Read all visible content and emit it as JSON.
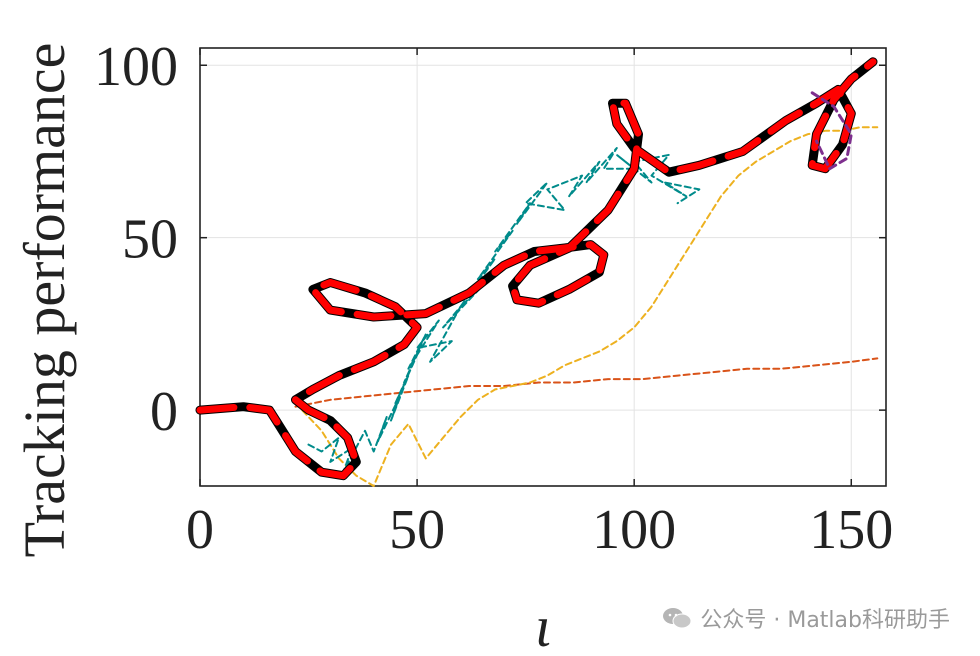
{
  "chart_data": {
    "type": "line",
    "title": "",
    "xlabel": "ι",
    "ylabel": "Tracking performance",
    "xlim": [
      0,
      158
    ],
    "ylim": [
      -22,
      105
    ],
    "xticks": [
      0,
      50,
      100,
      150
    ],
    "yticks": [
      0,
      50,
      100
    ],
    "grid": true,
    "legend": "none",
    "series": [
      {
        "color": "#000000",
        "style": "solid",
        "x": [
          0,
          10,
          16,
          18,
          22,
          28,
          33,
          36,
          34,
          30,
          25,
          22,
          26,
          32,
          40,
          47,
          50,
          45,
          38,
          30,
          26,
          30,
          40,
          52,
          62,
          70,
          77,
          84,
          90,
          93,
          92,
          85,
          78,
          73,
          72,
          76,
          85,
          94,
          100,
          101,
          98,
          95,
          96,
          100,
          108,
          115,
          125,
          135,
          142,
          147,
          150,
          148,
          144,
          141,
          142,
          146,
          150,
          155
        ],
        "y": [
          0,
          1,
          0,
          -4,
          -12,
          -18,
          -19,
          -15,
          -8,
          -3,
          0,
          3,
          6,
          10,
          14,
          19,
          24,
          30,
          34,
          37,
          35,
          29,
          27,
          28,
          34,
          42,
          46,
          47,
          48,
          45,
          40,
          35,
          31,
          32,
          36,
          42,
          47,
          58,
          70,
          80,
          89,
          89,
          83,
          76,
          69,
          71,
          75,
          84,
          89,
          93,
          86,
          77,
          70,
          71,
          80,
          90,
          96,
          101
        ]
      },
      {
        "color": "#ff0000",
        "style": "dashed",
        "x": [
          0,
          10,
          16,
          18,
          22,
          28,
          33,
          36,
          34,
          30,
          25,
          22,
          26,
          32,
          40,
          47,
          50,
          45,
          38,
          30,
          26,
          30,
          40,
          52,
          62,
          70,
          77,
          84,
          90,
          93,
          92,
          85,
          78,
          73,
          72,
          76,
          85,
          94,
          100,
          101,
          98,
          95,
          96,
          100,
          108,
          115,
          125,
          135,
          142,
          147,
          150,
          148,
          144,
          141,
          142,
          146,
          150,
          155
        ],
        "y": [
          0,
          1,
          0,
          -4,
          -12,
          -18,
          -19,
          -15,
          -8,
          -3,
          0,
          3,
          6,
          10,
          14,
          19,
          24,
          30,
          34,
          37,
          35,
          29,
          27,
          28,
          34,
          42,
          46,
          47,
          48,
          45,
          40,
          35,
          31,
          32,
          36,
          42,
          47,
          58,
          70,
          80,
          89,
          89,
          83,
          76,
          69,
          71,
          75,
          84,
          89,
          93,
          86,
          77,
          70,
          71,
          80,
          90,
          96,
          101
        ]
      },
      {
        "color": "#7e2f8e",
        "style": "dashed",
        "x": [
          141,
          146,
          150,
          149,
          145,
          142
        ],
        "y": [
          92,
          88,
          80,
          73,
          70,
          78
        ]
      },
      {
        "color": "#008b8b",
        "style": "dashed",
        "x": [
          25,
          28,
          32,
          30,
          35,
          33,
          38,
          40,
          43,
          41,
          46,
          44,
          48,
          45,
          50,
          47,
          52,
          48,
          55,
          50,
          58,
          53,
          60,
          56,
          65,
          60,
          68,
          64,
          72,
          68,
          76,
          73,
          80,
          75,
          84,
          80,
          88,
          85,
          92,
          89,
          96,
          93,
          100,
          96,
          104,
          100,
          108,
          104,
          112,
          107,
          115,
          110
        ],
        "y": [
          -10,
          -12,
          -8,
          -15,
          -11,
          -18,
          -6,
          -12,
          -2,
          -9,
          4,
          -3,
          10,
          2,
          16,
          8,
          22,
          12,
          26,
          18,
          20,
          14,
          30,
          24,
          36,
          30,
          44,
          38,
          52,
          46,
          60,
          54,
          66,
          60,
          58,
          64,
          68,
          62,
          72,
          66,
          76,
          70,
          70,
          74,
          66,
          72,
          74,
          68,
          62,
          66,
          64,
          60
        ]
      },
      {
        "color": "#edb120",
        "style": "dashed",
        "x": [
          22,
          28,
          32,
          36,
          40,
          44,
          48,
          52,
          56,
          60,
          64,
          68,
          72,
          76,
          80,
          84,
          88,
          92,
          96,
          100,
          104,
          108,
          112,
          116,
          120,
          124,
          128,
          132,
          136,
          140,
          144,
          148,
          152,
          156
        ],
        "y": [
          2,
          -6,
          -14,
          -19,
          -22,
          -10,
          -4,
          -14,
          -8,
          -2,
          3,
          6,
          7,
          8,
          10,
          13,
          15,
          17,
          20,
          24,
          30,
          38,
          46,
          54,
          62,
          68,
          72,
          75,
          78,
          80,
          81,
          81,
          82,
          82
        ]
      },
      {
        "color": "#d95319",
        "style": "dashed",
        "x": [
          22,
          30,
          38,
          46,
          54,
          62,
          70,
          78,
          86,
          94,
          102,
          110,
          118,
          126,
          134,
          142,
          150,
          156
        ],
        "y": [
          1,
          3,
          4,
          5,
          6,
          7,
          7,
          8,
          8,
          9,
          9,
          10,
          11,
          12,
          12,
          13,
          14,
          15
        ]
      }
    ]
  },
  "watermark": {
    "text": "公众号 · Matlab科研助手",
    "logo_icon": "wechat-icon"
  }
}
